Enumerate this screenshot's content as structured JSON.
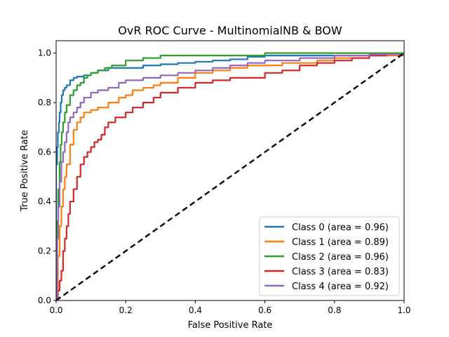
{
  "chart_data": {
    "type": "line",
    "title": "OvR ROC Curve - MultinomialNB & BOW",
    "xlabel": "False Positive Rate",
    "ylabel": "True Positive Rate",
    "xlim": [
      0.0,
      1.0
    ],
    "ylim": [
      0.0,
      1.05
    ],
    "x_ticks": [
      0.0,
      0.2,
      0.4,
      0.6,
      0.8,
      1.0
    ],
    "x_tick_labels": [
      "0.0",
      "0.2",
      "0.4",
      "0.6",
      "0.8",
      "1.0"
    ],
    "y_ticks": [
      0.0,
      0.2,
      0.4,
      0.6,
      0.8,
      1.0
    ],
    "y_tick_labels": [
      "0.0",
      "0.2",
      "0.4",
      "0.6",
      "0.8",
      "1.0"
    ],
    "grid": false,
    "legend_position": "lower-right",
    "series": [
      {
        "name": "Class 0 (area = 0.96)",
        "color": "#1f77b4",
        "x": [
          0,
          0,
          0.003,
          0.005,
          0.008,
          0.01,
          0.013,
          0.016,
          0.02,
          0.025,
          0.03,
          0.04,
          0.05,
          0.06,
          0.08,
          0.1,
          0.12,
          0.15,
          0.2,
          0.25,
          0.3,
          0.35,
          0.4,
          0.45,
          0.5,
          0.55,
          0.6,
          0.7,
          0.8,
          0.9,
          0.95,
          1.0
        ],
        "y": [
          0,
          0.55,
          0.62,
          0.68,
          0.72,
          0.76,
          0.8,
          0.83,
          0.85,
          0.86,
          0.87,
          0.89,
          0.9,
          0.905,
          0.91,
          0.92,
          0.93,
          0.94,
          0.94,
          0.95,
          0.955,
          0.96,
          0.965,
          0.97,
          0.975,
          0.985,
          0.99,
          0.99,
          0.99,
          0.99,
          0.995,
          1.0
        ]
      },
      {
        "name": "Class 1 (area = 0.89)",
        "color": "#ff7f0e",
        "x": [
          0,
          0.005,
          0.01,
          0.015,
          0.02,
          0.025,
          0.03,
          0.04,
          0.05,
          0.06,
          0.07,
          0.08,
          0.1,
          0.12,
          0.15,
          0.18,
          0.2,
          0.22,
          0.25,
          0.28,
          0.3,
          0.35,
          0.4,
          0.45,
          0.5,
          0.55,
          0.6,
          0.65,
          0.7,
          0.75,
          0.8,
          0.9,
          1.0
        ],
        "y": [
          0,
          0.18,
          0.3,
          0.38,
          0.45,
          0.5,
          0.55,
          0.63,
          0.69,
          0.72,
          0.74,
          0.76,
          0.77,
          0.78,
          0.8,
          0.82,
          0.83,
          0.85,
          0.86,
          0.87,
          0.88,
          0.9,
          0.92,
          0.93,
          0.94,
          0.95,
          0.95,
          0.96,
          0.96,
          0.97,
          0.98,
          0.99,
          1.0
        ]
      },
      {
        "name": "Class 2 (area = 0.96)",
        "color": "#2ca02c",
        "x": [
          0,
          0.003,
          0.006,
          0.01,
          0.013,
          0.016,
          0.02,
          0.025,
          0.03,
          0.04,
          0.05,
          0.06,
          0.07,
          0.08,
          0.09,
          0.1,
          0.12,
          0.14,
          0.16,
          0.2,
          0.25,
          0.3,
          0.4,
          0.5,
          0.6,
          0.7,
          0.8,
          1.0
        ],
        "y": [
          0,
          0.32,
          0.45,
          0.56,
          0.63,
          0.68,
          0.72,
          0.76,
          0.79,
          0.83,
          0.85,
          0.87,
          0.88,
          0.9,
          0.91,
          0.92,
          0.93,
          0.94,
          0.95,
          0.97,
          0.98,
          0.99,
          0.99,
          0.99,
          1.0,
          1.0,
          1.0,
          1.0
        ]
      },
      {
        "name": "Class 3 (area = 0.83)",
        "color": "#d62728",
        "x": [
          0,
          0.005,
          0.01,
          0.015,
          0.02,
          0.025,
          0.03,
          0.035,
          0.04,
          0.05,
          0.06,
          0.07,
          0.08,
          0.09,
          0.1,
          0.11,
          0.12,
          0.13,
          0.14,
          0.15,
          0.17,
          0.2,
          0.22,
          0.25,
          0.28,
          0.3,
          0.35,
          0.4,
          0.45,
          0.5,
          0.6,
          0.65,
          0.7,
          0.75,
          0.8,
          0.85,
          0.9,
          0.95,
          1.0
        ],
        "y": [
          0,
          0.04,
          0.08,
          0.12,
          0.2,
          0.25,
          0.3,
          0.35,
          0.4,
          0.45,
          0.5,
          0.55,
          0.58,
          0.6,
          0.62,
          0.64,
          0.65,
          0.67,
          0.7,
          0.72,
          0.74,
          0.76,
          0.78,
          0.8,
          0.82,
          0.84,
          0.86,
          0.88,
          0.89,
          0.9,
          0.92,
          0.93,
          0.95,
          0.96,
          0.97,
          0.98,
          0.99,
          0.995,
          1.0
        ]
      },
      {
        "name": "Class 4 (area = 0.92)",
        "color": "#9467bd",
        "x": [
          0,
          0.003,
          0.006,
          0.01,
          0.015,
          0.02,
          0.025,
          0.03,
          0.035,
          0.04,
          0.05,
          0.06,
          0.07,
          0.08,
          0.1,
          0.12,
          0.15,
          0.18,
          0.2,
          0.25,
          0.3,
          0.35,
          0.4,
          0.45,
          0.5,
          0.55,
          0.6,
          0.7,
          0.8,
          0.9,
          1.0
        ],
        "y": [
          0,
          0.25,
          0.38,
          0.48,
          0.56,
          0.6,
          0.64,
          0.68,
          0.72,
          0.74,
          0.76,
          0.78,
          0.8,
          0.82,
          0.84,
          0.85,
          0.86,
          0.88,
          0.89,
          0.9,
          0.91,
          0.92,
          0.93,
          0.94,
          0.95,
          0.96,
          0.97,
          0.98,
          0.99,
          0.995,
          1.0
        ]
      }
    ],
    "reference_line": {
      "x": [
        0,
        1
      ],
      "y": [
        0,
        1
      ],
      "color": "#000000",
      "style": "dashed"
    }
  }
}
